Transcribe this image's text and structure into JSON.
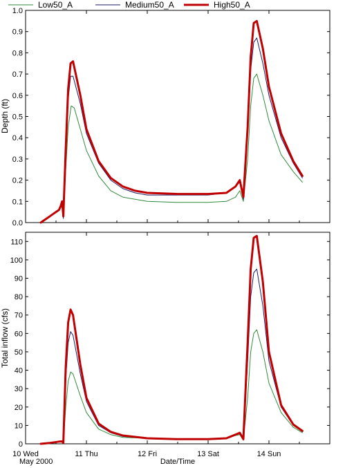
{
  "legend": [
    {
      "name": "Low50_A",
      "color": "#2e8b3a",
      "width": 1
    },
    {
      "name": "Medium50_A",
      "color": "#1a1a66",
      "width": 1
    },
    {
      "name": "High50_A",
      "color": "#c00000",
      "width": 3
    }
  ],
  "xaxis": {
    "label": "Date/Time",
    "date_note": "May 2000",
    "range": [
      0,
      5
    ],
    "ticks": [
      {
        "x": 0,
        "label": "10 Wed"
      },
      {
        "x": 1,
        "label": "11 Thu"
      },
      {
        "x": 2,
        "label": "12 Fri"
      },
      {
        "x": 3,
        "label": "13 Sat"
      },
      {
        "x": 4,
        "label": "14 Sun"
      }
    ]
  },
  "chart_data": [
    {
      "type": "line",
      "ylabel": "Depth (ft)",
      "xlabel": "",
      "ylim": [
        0,
        1.0
      ],
      "yticks": [
        0.0,
        0.1,
        0.2,
        0.3,
        0.4,
        0.5,
        0.6,
        0.7,
        0.8,
        0.9,
        1.0
      ],
      "ytick_labels": [
        "0.0",
        "0.1",
        "0.2",
        "0.3",
        "0.4",
        "0.5",
        "0.6",
        "0.7",
        "0.8",
        "0.9",
        "1.0"
      ],
      "grid": false,
      "series": [
        {
          "name": "Low50_A",
          "points": [
            [
              0.25,
              0.0
            ],
            [
              0.3,
              0.01
            ],
            [
              0.35,
              0.02
            ],
            [
              0.4,
              0.03
            ],
            [
              0.45,
              0.04
            ],
            [
              0.5,
              0.05
            ],
            [
              0.55,
              0.06
            ],
            [
              0.58,
              0.07
            ],
            [
              0.6,
              0.08
            ],
            [
              0.62,
              0.02
            ],
            [
              0.66,
              0.25
            ],
            [
              0.7,
              0.45
            ],
            [
              0.75,
              0.55
            ],
            [
              0.8,
              0.54
            ],
            [
              0.9,
              0.44
            ],
            [
              1.0,
              0.34
            ],
            [
              1.2,
              0.22
            ],
            [
              1.4,
              0.15
            ],
            [
              1.6,
              0.12
            ],
            [
              1.8,
              0.11
            ],
            [
              2.0,
              0.1
            ],
            [
              2.5,
              0.095
            ],
            [
              3.0,
              0.095
            ],
            [
              3.3,
              0.1
            ],
            [
              3.45,
              0.12
            ],
            [
              3.52,
              0.15
            ],
            [
              3.58,
              0.1
            ],
            [
              3.65,
              0.3
            ],
            [
              3.7,
              0.55
            ],
            [
              3.75,
              0.68
            ],
            [
              3.8,
              0.7
            ],
            [
              3.9,
              0.6
            ],
            [
              4.0,
              0.48
            ],
            [
              4.2,
              0.32
            ],
            [
              4.4,
              0.24
            ],
            [
              4.55,
              0.19
            ]
          ]
        },
        {
          "name": "Medium50_A",
          "points": [
            [
              0.25,
              0.0
            ],
            [
              0.3,
              0.01
            ],
            [
              0.35,
              0.02
            ],
            [
              0.4,
              0.03
            ],
            [
              0.45,
              0.04
            ],
            [
              0.5,
              0.05
            ],
            [
              0.55,
              0.06
            ],
            [
              0.58,
              0.08
            ],
            [
              0.6,
              0.09
            ],
            [
              0.62,
              0.02
            ],
            [
              0.66,
              0.32
            ],
            [
              0.7,
              0.58
            ],
            [
              0.74,
              0.69
            ],
            [
              0.78,
              0.69
            ],
            [
              0.9,
              0.56
            ],
            [
              1.0,
              0.42
            ],
            [
              1.2,
              0.28
            ],
            [
              1.4,
              0.2
            ],
            [
              1.6,
              0.16
            ],
            [
              1.8,
              0.14
            ],
            [
              2.0,
              0.13
            ],
            [
              2.5,
              0.13
            ],
            [
              3.0,
              0.13
            ],
            [
              3.3,
              0.14
            ],
            [
              3.45,
              0.17
            ],
            [
              3.52,
              0.19
            ],
            [
              3.58,
              0.11
            ],
            [
              3.65,
              0.42
            ],
            [
              3.7,
              0.72
            ],
            [
              3.75,
              0.85
            ],
            [
              3.8,
              0.87
            ],
            [
              3.9,
              0.75
            ],
            [
              4.0,
              0.6
            ],
            [
              4.2,
              0.4
            ],
            [
              4.4,
              0.28
            ],
            [
              4.55,
              0.21
            ]
          ]
        },
        {
          "name": "High50_A",
          "points": [
            [
              0.25,
              0.0
            ],
            [
              0.3,
              0.01
            ],
            [
              0.35,
              0.02
            ],
            [
              0.4,
              0.03
            ],
            [
              0.45,
              0.04
            ],
            [
              0.5,
              0.05
            ],
            [
              0.55,
              0.06
            ],
            [
              0.58,
              0.08
            ],
            [
              0.6,
              0.1
            ],
            [
              0.62,
              0.03
            ],
            [
              0.66,
              0.35
            ],
            [
              0.7,
              0.63
            ],
            [
              0.74,
              0.75
            ],
            [
              0.78,
              0.76
            ],
            [
              0.9,
              0.6
            ],
            [
              1.0,
              0.44
            ],
            [
              1.2,
              0.29
            ],
            [
              1.4,
              0.21
            ],
            [
              1.6,
              0.17
            ],
            [
              1.8,
              0.15
            ],
            [
              2.0,
              0.14
            ],
            [
              2.5,
              0.135
            ],
            [
              3.0,
              0.135
            ],
            [
              3.3,
              0.14
            ],
            [
              3.45,
              0.17
            ],
            [
              3.52,
              0.2
            ],
            [
              3.58,
              0.12
            ],
            [
              3.65,
              0.45
            ],
            [
              3.7,
              0.78
            ],
            [
              3.75,
              0.94
            ],
            [
              3.8,
              0.95
            ],
            [
              3.9,
              0.82
            ],
            [
              4.0,
              0.64
            ],
            [
              4.2,
              0.42
            ],
            [
              4.4,
              0.29
            ],
            [
              4.55,
              0.22
            ]
          ]
        }
      ]
    },
    {
      "type": "line",
      "ylabel": "Total inflow (cfs)",
      "xlabel": "Date/Time",
      "ylim": [
        0,
        115
      ],
      "yticks": [
        0,
        10,
        20,
        30,
        40,
        50,
        60,
        70,
        80,
        90,
        100,
        110
      ],
      "ytick_labels": [
        "0",
        "10",
        "20",
        "30",
        "40",
        "50",
        "60",
        "70",
        "80",
        "90",
        "100",
        "110"
      ],
      "grid": false,
      "series": [
        {
          "name": "Low50_A",
          "points": [
            [
              0.25,
              0.0
            ],
            [
              0.4,
              0.5
            ],
            [
              0.55,
              1.0
            ],
            [
              0.6,
              1.0
            ],
            [
              0.62,
              0.5
            ],
            [
              0.66,
              20
            ],
            [
              0.7,
              34
            ],
            [
              0.74,
              39
            ],
            [
              0.78,
              38
            ],
            [
              0.9,
              26
            ],
            [
              1.0,
              17
            ],
            [
              1.2,
              8
            ],
            [
              1.4,
              5
            ],
            [
              1.6,
              3.5
            ],
            [
              2.0,
              3
            ],
            [
              2.5,
              2.5
            ],
            [
              3.0,
              2.5
            ],
            [
              3.3,
              3
            ],
            [
              3.45,
              4.5
            ],
            [
              3.52,
              5
            ],
            [
              3.58,
              2
            ],
            [
              3.65,
              25
            ],
            [
              3.7,
              50
            ],
            [
              3.75,
              60
            ],
            [
              3.8,
              62
            ],
            [
              3.9,
              50
            ],
            [
              4.0,
              33
            ],
            [
              4.2,
              17
            ],
            [
              4.4,
              9
            ],
            [
              4.55,
              6
            ]
          ]
        },
        {
          "name": "Medium50_A",
          "points": [
            [
              0.25,
              0.0
            ],
            [
              0.4,
              0.5
            ],
            [
              0.55,
              1.2
            ],
            [
              0.6,
              1.2
            ],
            [
              0.62,
              0.5
            ],
            [
              0.66,
              35
            ],
            [
              0.7,
              55
            ],
            [
              0.74,
              61
            ],
            [
              0.78,
              59
            ],
            [
              0.9,
              38
            ],
            [
              1.0,
              23
            ],
            [
              1.2,
              10
            ],
            [
              1.4,
              6
            ],
            [
              1.6,
              4
            ],
            [
              2.0,
              3
            ],
            [
              2.5,
              2.5
            ],
            [
              3.0,
              2.5
            ],
            [
              3.3,
              3
            ],
            [
              3.45,
              5
            ],
            [
              3.52,
              5.5
            ],
            [
              3.58,
              2
            ],
            [
              3.65,
              45
            ],
            [
              3.7,
              80
            ],
            [
              3.75,
              93
            ],
            [
              3.8,
              95
            ],
            [
              3.9,
              75
            ],
            [
              4.0,
              45
            ],
            [
              4.2,
              20
            ],
            [
              4.4,
              10
            ],
            [
              4.55,
              6.5
            ]
          ]
        },
        {
          "name": "High50_A",
          "points": [
            [
              0.25,
              0.0
            ],
            [
              0.4,
              0.5
            ],
            [
              0.55,
              1.2
            ],
            [
              0.6,
              1.3
            ],
            [
              0.62,
              0.5
            ],
            [
              0.66,
              42
            ],
            [
              0.7,
              66
            ],
            [
              0.74,
              73
            ],
            [
              0.78,
              70
            ],
            [
              0.9,
              43
            ],
            [
              1.0,
              25
            ],
            [
              1.2,
              11
            ],
            [
              1.4,
              6.5
            ],
            [
              1.6,
              4.5
            ],
            [
              2.0,
              3
            ],
            [
              2.5,
              2.5
            ],
            [
              3.0,
              2.5
            ],
            [
              3.3,
              3
            ],
            [
              3.45,
              5
            ],
            [
              3.52,
              6
            ],
            [
              3.58,
              2.5
            ],
            [
              3.65,
              55
            ],
            [
              3.7,
              95
            ],
            [
              3.75,
              112
            ],
            [
              3.8,
              113
            ],
            [
              3.9,
              88
            ],
            [
              4.0,
              50
            ],
            [
              4.2,
              21
            ],
            [
              4.4,
              10.5
            ],
            [
              4.55,
              7
            ]
          ]
        }
      ]
    }
  ]
}
